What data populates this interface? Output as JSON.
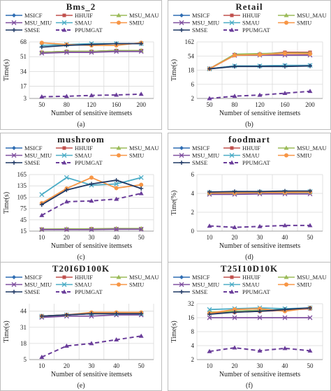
{
  "legend": [
    {
      "name": "MSICF",
      "color": "#2f6db3",
      "marker": "diamond",
      "dash": false
    },
    {
      "name": "HHUIF",
      "color": "#c0504d",
      "marker": "square",
      "dash": false
    },
    {
      "name": "MSU_MAU",
      "color": "#9bbb59",
      "marker": "triangle",
      "dash": false
    },
    {
      "name": "MSU_MIU",
      "color": "#7f4f9f",
      "marker": "x",
      "dash": false
    },
    {
      "name": "SMAU",
      "color": "#4bacc6",
      "marker": "x",
      "dash": false
    },
    {
      "name": "SMIU",
      "color": "#f79646",
      "marker": "circle",
      "dash": false
    },
    {
      "name": "SMSE",
      "color": "#1f3864",
      "marker": "plus",
      "dash": false
    },
    {
      "name": "PPUMGAT",
      "color": "#6a3d9a",
      "marker": "triangle",
      "dash": true
    }
  ],
  "chart_data": [
    {
      "type": "line",
      "title": "Bms_2",
      "caption": "(a)",
      "xlabel": "Number of sensitive itemsets",
      "ylabel": "Time(s)",
      "yscale": "linear",
      "x": [
        50,
        80,
        120,
        160,
        200
      ],
      "yticks": [
        3,
        17,
        34,
        51,
        68
      ],
      "ylim": [
        3,
        68
      ],
      "series": [
        {
          "name": "MSICF",
          "values": [
            56,
            57,
            57,
            58,
            58
          ]
        },
        {
          "name": "HHUIF",
          "values": [
            56,
            57,
            57,
            58,
            58
          ]
        },
        {
          "name": "MSU_MAU",
          "values": [
            56,
            57,
            57,
            58,
            58
          ]
        },
        {
          "name": "MSU_MIU",
          "values": [
            55,
            56,
            56,
            57,
            57
          ]
        },
        {
          "name": "SMAU",
          "values": [
            64,
            65,
            66,
            66,
            66
          ]
        },
        {
          "name": "SMIU",
          "values": [
            67,
            65,
            64,
            64,
            67
          ]
        },
        {
          "name": "SMSE",
          "values": [
            62,
            64,
            65,
            66,
            66
          ]
        },
        {
          "name": "PPUMGAT",
          "values": [
            5,
            5.5,
            6.5,
            7,
            8
          ]
        }
      ]
    },
    {
      "type": "line",
      "title": "Retail",
      "caption": "(b)",
      "xlabel": "Number of sensitive itemsets",
      "ylabel": "Time(s)",
      "yscale": "log",
      "x": [
        50,
        80,
        120,
        160,
        200
      ],
      "yticks": [
        2,
        6,
        18,
        54,
        162
      ],
      "ylim": [
        2,
        162
      ],
      "series": [
        {
          "name": "MSICF",
          "values": [
            20,
            25,
            25,
            26,
            26
          ]
        },
        {
          "name": "HHUIF",
          "values": [
            20,
            60,
            62,
            72,
            72
          ]
        },
        {
          "name": "MSU_MAU",
          "values": [
            20,
            62,
            65,
            68,
            68
          ]
        },
        {
          "name": "MSU_MIU",
          "values": [
            20,
            57,
            58,
            58,
            58
          ]
        },
        {
          "name": "SMAU",
          "values": [
            20,
            25,
            25,
            26,
            26
          ]
        },
        {
          "name": "SMIU",
          "values": [
            20,
            57,
            60,
            66,
            64
          ]
        },
        {
          "name": "SMSE",
          "values": [
            20,
            24,
            24,
            24,
            25
          ]
        },
        {
          "name": "PPUMGAT",
          "values": [
            2,
            2.4,
            2.6,
            3,
            3.5
          ]
        }
      ]
    },
    {
      "type": "line",
      "title": "mushroom",
      "caption": "(c)",
      "xlabel": "Number of sensitive itemsets",
      "ylabel": "Time(s)",
      "yscale": "linear",
      "x": [
        10,
        20,
        30,
        40,
        50
      ],
      "yticks": [
        15,
        45,
        75,
        105,
        135,
        165
      ],
      "ylim": [
        15,
        165
      ],
      "series": [
        {
          "name": "MSICF",
          "values": [
            20,
            20,
            20,
            21,
            21
          ]
        },
        {
          "name": "HHUIF",
          "values": [
            20,
            20,
            21,
            21,
            21
          ]
        },
        {
          "name": "MSU_MAU",
          "values": [
            20,
            21,
            21,
            22,
            22
          ]
        },
        {
          "name": "MSU_MIU",
          "values": [
            19,
            19,
            19,
            20,
            20
          ]
        },
        {
          "name": "SMAU",
          "values": [
            112,
            157,
            137,
            140,
            157
          ]
        },
        {
          "name": "SMIU",
          "values": [
            89,
            128,
            157,
            129,
            138
          ]
        },
        {
          "name": "SMSE",
          "values": [
            85,
            124,
            140,
            150,
            128
          ]
        },
        {
          "name": "PPUMGAT",
          "values": [
            57,
            93,
            95,
            100,
            115
          ]
        }
      ]
    },
    {
      "type": "line",
      "title": "foodmart",
      "caption": "(d)",
      "xlabel": "Number of sensitive itemsets",
      "ylabel": "Time(%)",
      "yscale": "linear",
      "x": [
        10,
        20,
        30,
        40,
        50
      ],
      "yticks": [
        0,
        2,
        4,
        6
      ],
      "ylim": [
        0,
        6
      ],
      "series": [
        {
          "name": "MSICF",
          "values": [
            4.1,
            4.1,
            4.15,
            4.15,
            4.2
          ]
        },
        {
          "name": "HHUIF",
          "values": [
            4.1,
            4.1,
            4.15,
            4.15,
            4.2
          ]
        },
        {
          "name": "MSU_MAU",
          "values": [
            4.0,
            4.0,
            4.05,
            4.05,
            4.1
          ]
        },
        {
          "name": "MSU_MIU",
          "values": [
            3.9,
            3.9,
            3.95,
            3.95,
            3.95
          ]
        },
        {
          "name": "SMAU",
          "values": [
            4.1,
            4.1,
            4.15,
            4.15,
            4.2
          ]
        },
        {
          "name": "SMIU",
          "values": [
            4.05,
            4.05,
            4.1,
            4.1,
            4.15
          ]
        },
        {
          "name": "SMSE",
          "values": [
            4.15,
            4.2,
            4.2,
            4.25,
            4.25
          ]
        },
        {
          "name": "PPUMGAT",
          "values": [
            0.55,
            0.4,
            0.5,
            0.6,
            0.6
          ]
        }
      ]
    },
    {
      "type": "line",
      "title": "T20I6D100K",
      "caption": "(e)",
      "xlabel": "Number of sensitive itemsets",
      "ylabel": "Time(s)",
      "yscale": "linear",
      "x": [
        10,
        20,
        30,
        40,
        50
      ],
      "yticks": [
        5,
        18,
        31,
        44
      ],
      "ylim": [
        5,
        50
      ],
      "series": [
        {
          "name": "MSICF",
          "values": [
            40,
            41,
            42,
            42,
            42
          ]
        },
        {
          "name": "HHUIF",
          "values": [
            40,
            41,
            42,
            42,
            42
          ]
        },
        {
          "name": "MSU_MAU",
          "values": [
            40,
            41,
            42,
            42,
            42
          ]
        },
        {
          "name": "MSU_MIU",
          "values": [
            39,
            40,
            40,
            41,
            41
          ]
        },
        {
          "name": "SMAU",
          "values": [
            40,
            41,
            42,
            42,
            42
          ]
        },
        {
          "name": "SMIU",
          "values": [
            40,
            41,
            43,
            43,
            43
          ]
        },
        {
          "name": "SMSE",
          "values": [
            40,
            41,
            42,
            42,
            42
          ]
        },
        {
          "name": "PPUMGAT",
          "values": [
            7,
            16,
            18,
            21,
            24
          ]
        }
      ]
    },
    {
      "type": "line",
      "title": "T25I10D10K",
      "caption": "(f)",
      "xlabel": "Number of sensitive itemsets",
      "ylabel": "Time(s)",
      "yscale": "log",
      "x": [
        10,
        20,
        30,
        40,
        50
      ],
      "yticks": [
        2,
        4,
        8,
        16,
        32
      ],
      "ylim": [
        2,
        32
      ],
      "series": [
        {
          "name": "MSICF",
          "values": [
            20,
            22,
            23,
            24,
            26
          ]
        },
        {
          "name": "HHUIF",
          "values": [
            20,
            21,
            22,
            23,
            25
          ]
        },
        {
          "name": "MSU_MAU",
          "values": [
            21,
            22,
            23,
            24,
            26
          ]
        },
        {
          "name": "MSU_MIU",
          "values": [
            16,
            16,
            16,
            16,
            16
          ]
        },
        {
          "name": "SMAU",
          "values": [
            24,
            25,
            26,
            25,
            26
          ]
        },
        {
          "name": "SMIU",
          "values": [
            20,
            24,
            25,
            22,
            26
          ]
        },
        {
          "name": "SMSE",
          "values": [
            19,
            21,
            22,
            24,
            26
          ]
        },
        {
          "name": "PPUMGAT",
          "values": [
            3,
            3.6,
            3.1,
            3.5,
            3.1
          ]
        }
      ]
    }
  ]
}
